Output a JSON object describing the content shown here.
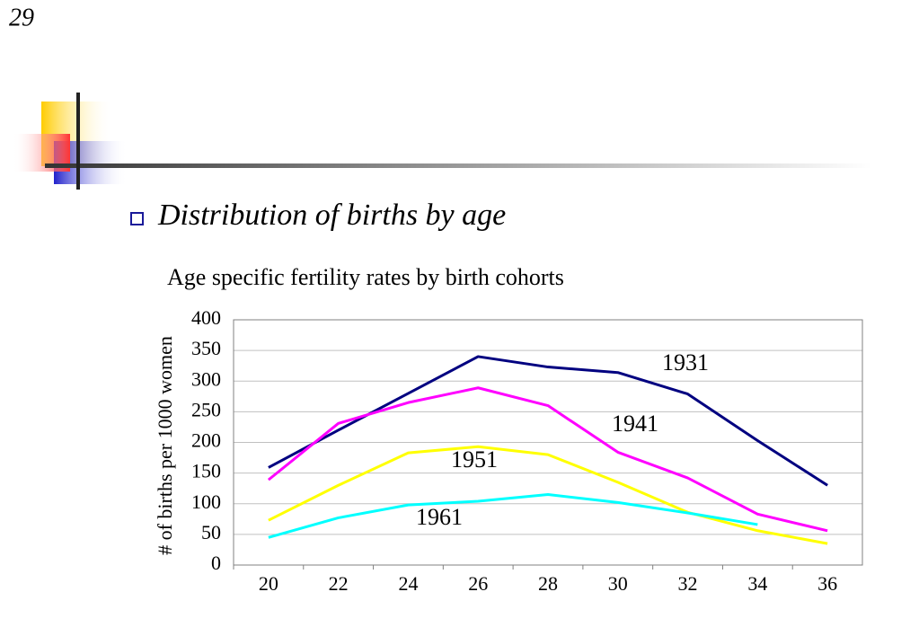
{
  "slide_number": "29",
  "heading": "Distribution of births by age",
  "chart_data": {
    "type": "line",
    "title": "Age specific fertility rates by birth cohorts",
    "y_label": "# of births per 1000 women",
    "categories": [
      "20",
      "22",
      "24",
      "26",
      "28",
      "30",
      "32",
      "34",
      "36"
    ],
    "series": [
      {
        "name": "1931",
        "color": "#000080",
        "values": [
          159,
          220,
          280,
          340,
          323,
          314,
          279,
          203,
          130
        ]
      },
      {
        "name": "1941",
        "color": "#ff00ff",
        "values": [
          139,
          231,
          265,
          289,
          260,
          184,
          142,
          83,
          56
        ]
      },
      {
        "name": "1951",
        "color": "#ffff00",
        "values": [
          73,
          130,
          183,
          193,
          180,
          135,
          86,
          56,
          35
        ]
      },
      {
        "name": "1961",
        "color": "#00ffff",
        "values": [
          45,
          77,
          98,
          104,
          115,
          102,
          85,
          66,
          null
        ]
      }
    ],
    "ylim": [
      0,
      400
    ],
    "yticks": [
      0,
      50,
      100,
      150,
      200,
      250,
      300,
      350,
      400
    ],
    "grid": true
  }
}
